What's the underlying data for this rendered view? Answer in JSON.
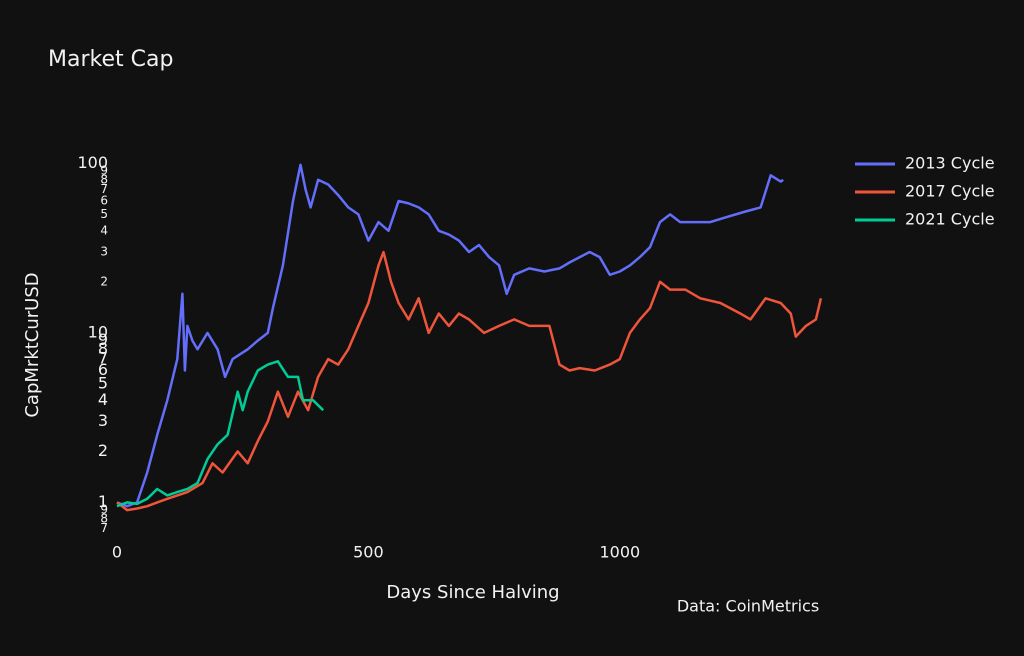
{
  "chart_data": {
    "type": "line",
    "title": "Market Cap",
    "xlabel": "Days Since Halving",
    "ylabel": "CapMrktCurUSD",
    "annotation": "Data: CoinMetrics",
    "log_y": true,
    "grid": false,
    "legend": "right",
    "xlim": [
      0,
      1420
    ],
    "xticks": [
      0,
      500,
      1000
    ],
    "ylim": [
      0.6,
      112
    ],
    "yticks": [
      {
        "value": 0.7,
        "label": "7"
      },
      {
        "value": 0.8,
        "label": "8"
      },
      {
        "value": 0.9,
        "label": "9"
      },
      1,
      2,
      3,
      4,
      5,
      6,
      7,
      8,
      9,
      10,
      {
        "value": 20,
        "label": "2"
      },
      {
        "value": 30,
        "label": "3"
      },
      {
        "value": 40,
        "label": "4"
      },
      {
        "value": 50,
        "label": "5"
      },
      {
        "value": 60,
        "label": "6"
      },
      {
        "value": 70,
        "label": "7"
      },
      {
        "value": 80,
        "label": "8"
      },
      {
        "value": 90,
        "label": "9"
      },
      100
    ],
    "series": [
      {
        "name": "2013 Cycle",
        "color": "#636efa",
        "x": [
          0,
          20,
          40,
          60,
          80,
          100,
          120,
          130,
          135,
          140,
          150,
          160,
          180,
          200,
          215,
          230,
          260,
          280,
          300,
          310,
          330,
          350,
          365,
          375,
          385,
          400,
          420,
          440,
          460,
          480,
          500,
          520,
          540,
          560,
          580,
          600,
          620,
          640,
          660,
          680,
          700,
          720,
          740,
          760,
          775,
          790,
          820,
          850,
          880,
          900,
          940,
          960,
          980,
          1000,
          1020,
          1040,
          1060,
          1080,
          1100,
          1120,
          1150,
          1180,
          1210,
          1250,
          1280,
          1300,
          1320,
          1325
        ],
        "values": [
          1.0,
          0.95,
          1.0,
          1.5,
          2.5,
          4,
          7,
          17,
          6,
          11,
          9,
          8,
          10,
          8,
          5.5,
          7,
          8,
          9,
          10,
          14,
          25,
          60,
          98,
          70,
          55,
          80,
          75,
          65,
          55,
          50,
          35,
          45,
          40,
          60,
          58,
          55,
          50,
          40,
          38,
          35,
          30,
          33,
          28,
          25,
          17,
          22,
          24,
          23,
          24,
          26,
          30,
          28,
          22,
          23,
          25,
          28,
          32,
          45,
          50,
          45,
          45,
          45,
          48,
          52,
          55,
          85,
          78,
          80
        ]
      },
      {
        "name": "2017 Cycle",
        "color": "#ef553b",
        "x": [
          0,
          20,
          40,
          60,
          80,
          100,
          140,
          170,
          190,
          210,
          240,
          260,
          280,
          300,
          320,
          340,
          360,
          380,
          400,
          420,
          440,
          460,
          480,
          500,
          520,
          530,
          545,
          560,
          580,
          600,
          620,
          640,
          660,
          680,
          700,
          730,
          760,
          790,
          820,
          860,
          880,
          900,
          920,
          950,
          980,
          1000,
          1020,
          1040,
          1060,
          1080,
          1100,
          1130,
          1160,
          1200,
          1240,
          1260,
          1290,
          1320,
          1340,
          1350,
          1370,
          1390,
          1400
        ],
        "values": [
          1.0,
          0.9,
          0.92,
          0.95,
          1.0,
          1.05,
          1.15,
          1.3,
          1.7,
          1.5,
          2.0,
          1.7,
          2.3,
          3,
          4.5,
          3.2,
          4.5,
          3.5,
          5.5,
          7,
          6.5,
          8,
          11,
          15,
          25,
          30,
          20,
          15,
          12,
          16,
          10,
          13,
          11,
          13,
          12,
          10,
          11,
          12,
          11,
          11,
          6.5,
          6,
          6.2,
          6.0,
          6.5,
          7,
          10,
          12,
          14,
          20,
          18,
          18,
          16,
          15,
          13,
          12,
          16,
          15,
          13,
          9.5,
          11,
          12,
          16
        ]
      },
      {
        "name": "2021 Cycle",
        "color": "#00cc96",
        "x": [
          0,
          20,
          40,
          60,
          80,
          100,
          120,
          140,
          160,
          180,
          200,
          220,
          240,
          250,
          260,
          280,
          300,
          320,
          340,
          360,
          370,
          390,
          410
        ],
        "values": [
          0.95,
          1.0,
          0.98,
          1.05,
          1.2,
          1.1,
          1.15,
          1.2,
          1.3,
          1.8,
          2.2,
          2.5,
          4.5,
          3.5,
          4.5,
          6,
          6.5,
          6.8,
          5.5,
          5.5,
          4.0,
          4.0,
          3.5
        ]
      }
    ]
  }
}
